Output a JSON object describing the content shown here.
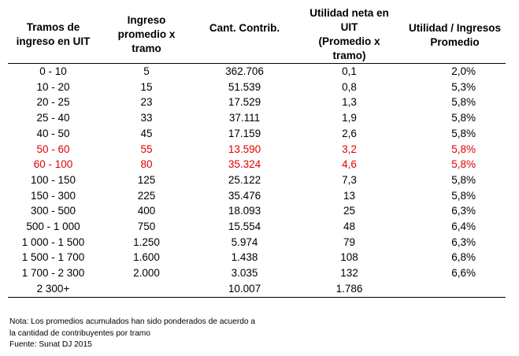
{
  "headers": {
    "c1": [
      "Tramos de",
      "ingreso en UIT"
    ],
    "c2": [
      "Ingreso",
      "promedio x",
      "tramo"
    ],
    "c3": [
      "Cant. Contrib."
    ],
    "c4": [
      "Utilidad neta en",
      "UIT",
      "(Promedio x",
      "tramo)"
    ],
    "c5": [
      "Utilidad /  Ingresos",
      "Promedio"
    ]
  },
  "rows": [
    {
      "tramo": "0 - 10",
      "ingreso": "5",
      "contrib": "362.706",
      "utilidad": "0,1",
      "ratio": "2,0%"
    },
    {
      "tramo": "10 - 20",
      "ingreso": "15",
      "contrib": "51.539",
      "utilidad": "0,8",
      "ratio": "5,3%"
    },
    {
      "tramo": "20 - 25",
      "ingreso": "23",
      "contrib": "17.529",
      "utilidad": "1,3",
      "ratio": "5,8%"
    },
    {
      "tramo": "25 - 40",
      "ingreso": "33",
      "contrib": "37.111",
      "utilidad": "1,9",
      "ratio": "5,8%"
    },
    {
      "tramo": "40 - 50",
      "ingreso": "45",
      "contrib": "17.159",
      "utilidad": "2,6",
      "ratio": "5,8%"
    },
    {
      "tramo": "50 - 60",
      "ingreso": "55",
      "contrib": "13.590",
      "utilidad": "3,2",
      "ratio": "5,8%"
    },
    {
      "tramo": "60 - 100",
      "ingreso": "80",
      "contrib": "35.324",
      "utilidad": "4,6",
      "ratio": "5,8%"
    },
    {
      "tramo": "100 - 150",
      "ingreso": "125",
      "contrib": "25.122",
      "utilidad": "7,3",
      "ratio": "5,8%"
    },
    {
      "tramo": "150 - 300",
      "ingreso": "225",
      "contrib": "35.476",
      "utilidad": "13",
      "ratio": "5,8%"
    },
    {
      "tramo": "300 - 500",
      "ingreso": "400",
      "contrib": "18.093",
      "utilidad": "25",
      "ratio": "6,3%"
    },
    {
      "tramo": "500 - 1 000",
      "ingreso": "750",
      "contrib": "15.554",
      "utilidad": "48",
      "ratio": "6,4%"
    },
    {
      "tramo": "1 000 - 1 500",
      "ingreso": "1.250",
      "contrib": "5.974",
      "utilidad": "79",
      "ratio": "6,3%"
    },
    {
      "tramo": "1 500 - 1 700",
      "ingreso": "1.600",
      "contrib": "1.438",
      "utilidad": "108",
      "ratio": "6,8%"
    },
    {
      "tramo": "1 700 - 2 300",
      "ingreso": "2.000",
      "contrib": "3.035",
      "utilidad": "132",
      "ratio": "6,6%"
    },
    {
      "tramo": "2 300+",
      "ingreso": "",
      "contrib": "10.007",
      "utilidad": "1.786",
      "ratio": ""
    }
  ],
  "highlight_color": "#e00000",
  "notes": {
    "line1": "Nota: Los promedios acumulados han sido ponderados de acuerdo a",
    "line2": "la cantidad de contribuyentes por tramo",
    "source": "Fuente: Sunat DJ 2015"
  }
}
